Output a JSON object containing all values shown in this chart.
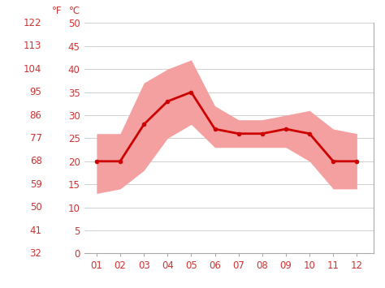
{
  "months": [
    1,
    2,
    3,
    4,
    5,
    6,
    7,
    8,
    9,
    10,
    11,
    12
  ],
  "month_labels": [
    "01",
    "02",
    "03",
    "04",
    "05",
    "06",
    "07",
    "08",
    "09",
    "10",
    "11",
    "12"
  ],
  "mean_temp_c": [
    20,
    20,
    28,
    33,
    35,
    27,
    26,
    26,
    27,
    26,
    20,
    20
  ],
  "min_temp_c": [
    13,
    14,
    18,
    25,
    28,
    23,
    23,
    23,
    23,
    20,
    14,
    14
  ],
  "max_temp_c": [
    26,
    26,
    37,
    40,
    42,
    32,
    29,
    29,
    30,
    31,
    27,
    26
  ],
  "yticks_c": [
    0,
    5,
    10,
    15,
    20,
    25,
    30,
    35,
    40,
    45,
    50
  ],
  "yticks_f": [
    32,
    41,
    50,
    59,
    68,
    77,
    86,
    95,
    104,
    113,
    122
  ],
  "ylim": [
    0,
    50
  ],
  "xlim": [
    0.5,
    12.7
  ],
  "line_color": "#cc0000",
  "band_color": "#f4a0a0",
  "bg_color": "#ffffff",
  "grid_color": "#d0d0d0",
  "label_color": "#cc3333",
  "tick_fontsize": 8.5,
  "marker_size": 4
}
